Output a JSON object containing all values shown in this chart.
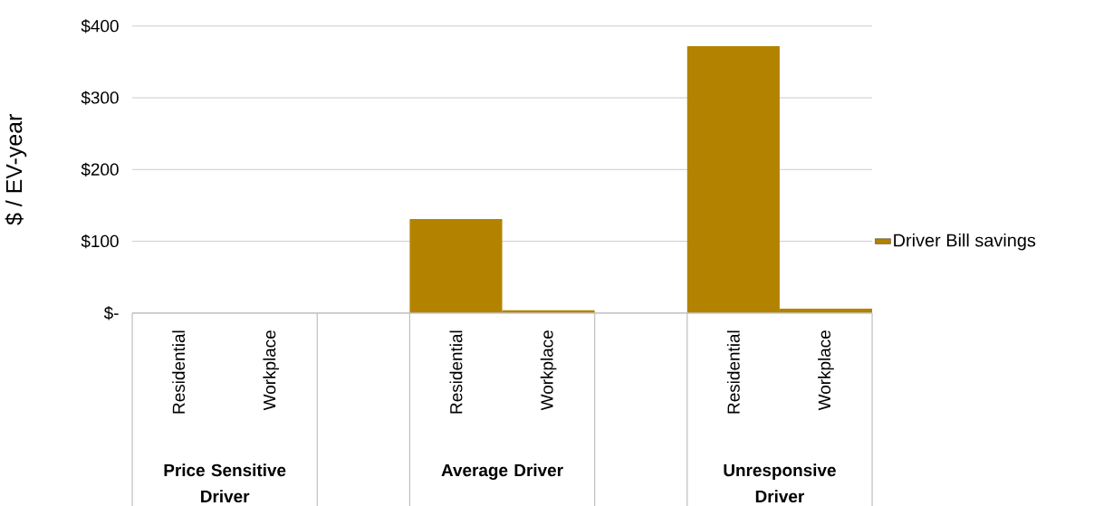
{
  "chart_data": {
    "type": "bar",
    "ylabel": "$ / EV-year",
    "categories": [
      "Residential",
      "Workplace",
      null,
      "Residential",
      "Workplace",
      null,
      "Residential",
      "Workplace"
    ],
    "series": [
      {
        "name": "Driver Bill savings",
        "color": "#b38300",
        "values": [
          0,
          0,
          null,
          131,
          4,
          null,
          372,
          6
        ]
      }
    ],
    "ylim": [
      0,
      400
    ],
    "yticks": [
      {
        "value": 0,
        "label": "$-"
      },
      {
        "value": 100,
        "label": "$100"
      },
      {
        "value": 200,
        "label": "$200"
      },
      {
        "value": 300,
        "label": "$300"
      },
      {
        "value": 400,
        "label": "$400"
      }
    ],
    "grid": "y",
    "legend": "right",
    "annotations": [
      "Price Sensitive Driver",
      "Average Driver",
      "Unresponsive Driver"
    ]
  }
}
